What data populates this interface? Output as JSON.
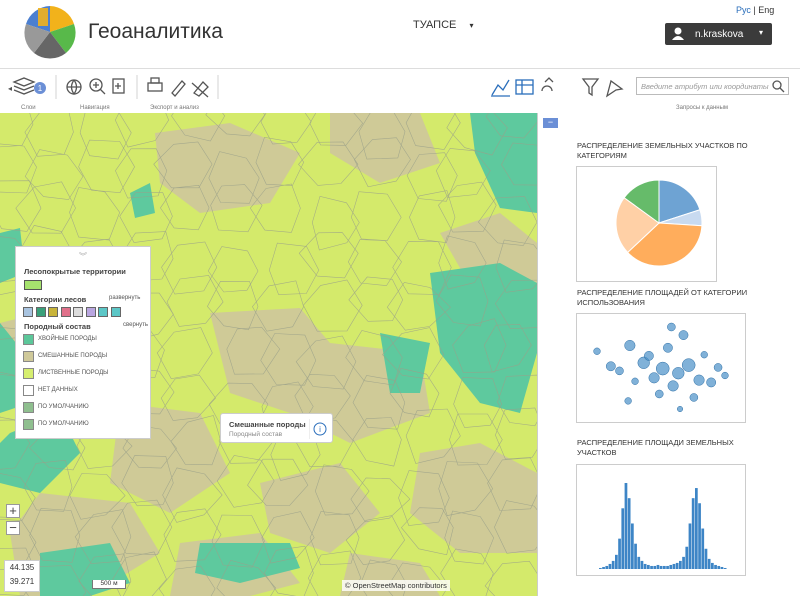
{
  "header": {
    "title": "Геоаналитика",
    "city": "ТУАПСЕ",
    "lang_ru": "Рус",
    "lang_en": "Eng",
    "user": "n.kraskova"
  },
  "toolbar": {
    "badge": 1,
    "groups": [
      "Слои",
      "Навигация",
      "Экспорт и анализ",
      "Запросы к данным"
    ],
    "search_placeholder": "Введите атрибут или координаты"
  },
  "map": {
    "legend": {
      "title": "Лесопокрытые территории",
      "title_color": "#a6e36e",
      "categories_title": "Категории лесов",
      "expand": "развернуть",
      "category_colors": [
        "#a9c4e0",
        "#3aa07a",
        "#c8b43a",
        "#e0708a",
        "#dcdcdc",
        "#b9a6e0",
        "#5cc7c7",
        "#5cc7c7"
      ],
      "composition_title": "Породный состав",
      "collapse": "свернуть",
      "items": [
        {
          "label": "ХВОЙНЫЕ ПОРОДЫ",
          "color": "#5cc79a"
        },
        {
          "label": "СМЕШАННЫЕ ПОРОДЫ",
          "color": "#cfc99a"
        },
        {
          "label": "ЛИСТВЕННЫЕ ПОРОДЫ",
          "color": "#d6ee6f"
        },
        {
          "label": "НЕТ ДАННЫХ",
          "color": "#ffffff"
        },
        {
          "label": "ПО УМОЛЧАНИЮ",
          "color": "#8fbf8f"
        },
        {
          "label": "ПО УМОЛЧАНИЮ",
          "color": "#8fbf8f"
        }
      ]
    },
    "popup": {
      "title": "Смешанные породы",
      "subtitle": "Породный состав"
    },
    "coords": [
      44.135,
      39.271
    ],
    "scale": "500 м",
    "attribution": "© OpenStreetMap contributors"
  },
  "panel": {
    "charts": [
      {
        "type": "pie",
        "title": "РАСПРЕДЕЛЕНИЕ ЗЕМЕЛЬНЫХ УЧАСТКОВ ПО КАТЕГОРИЯМ",
        "values": [
          20,
          6,
          37,
          22,
          15
        ],
        "colors": [
          "#6ea3d3",
          "#c8daf0",
          "#ffad5c",
          "#ffd0a6",
          "#66bb6a"
        ]
      },
      {
        "type": "scatter",
        "title": "РАСПРЕДЕЛЕНИЕ ПЛОЩАДЕЙ ОТ КАТЕГОРИИ ИСПОЛЬЗОВАНИЯ",
        "color": "#4a90c8",
        "x": [
          1.2,
          2.0,
          2.5,
          3.1,
          3.4,
          3.9,
          4.2,
          4.5,
          4.8,
          5.0,
          5.3,
          5.6,
          5.9,
          6.2,
          6.5,
          6.8,
          7.1,
          7.4,
          7.8,
          8.2,
          8.6,
          3.0,
          5.5,
          6.0
        ],
        "values": [
          6.5,
          5.2,
          4.8,
          7.0,
          3.9,
          5.5,
          6.1,
          4.2,
          2.8,
          5.0,
          6.8,
          3.5,
          4.6,
          7.9,
          5.3,
          2.5,
          4.0,
          6.2,
          3.8,
          5.1,
          4.4,
          2.2,
          8.6,
          1.5
        ],
        "sizes": [
          3,
          5,
          4,
          6,
          3,
          7,
          5,
          6,
          4,
          8,
          5,
          6,
          7,
          5,
          8,
          4,
          6,
          3,
          5,
          4,
          3,
          3,
          4,
          2
        ]
      },
      {
        "type": "bar",
        "title": "РАСПРЕДЕЛЕНИЕ ПЛОЩАДИ ЗЕМЕЛЬНЫХ УЧАСТКОВ",
        "color": "#3d85c6",
        "values": [
          1,
          2,
          3,
          5,
          8,
          14,
          30,
          60,
          85,
          70,
          45,
          25,
          12,
          8,
          5,
          4,
          3,
          3,
          4,
          3,
          3,
          3,
          4,
          5,
          6,
          8,
          12,
          22,
          45,
          70,
          80,
          65,
          40,
          20,
          10,
          6,
          4,
          3,
          2,
          1
        ]
      }
    ]
  }
}
